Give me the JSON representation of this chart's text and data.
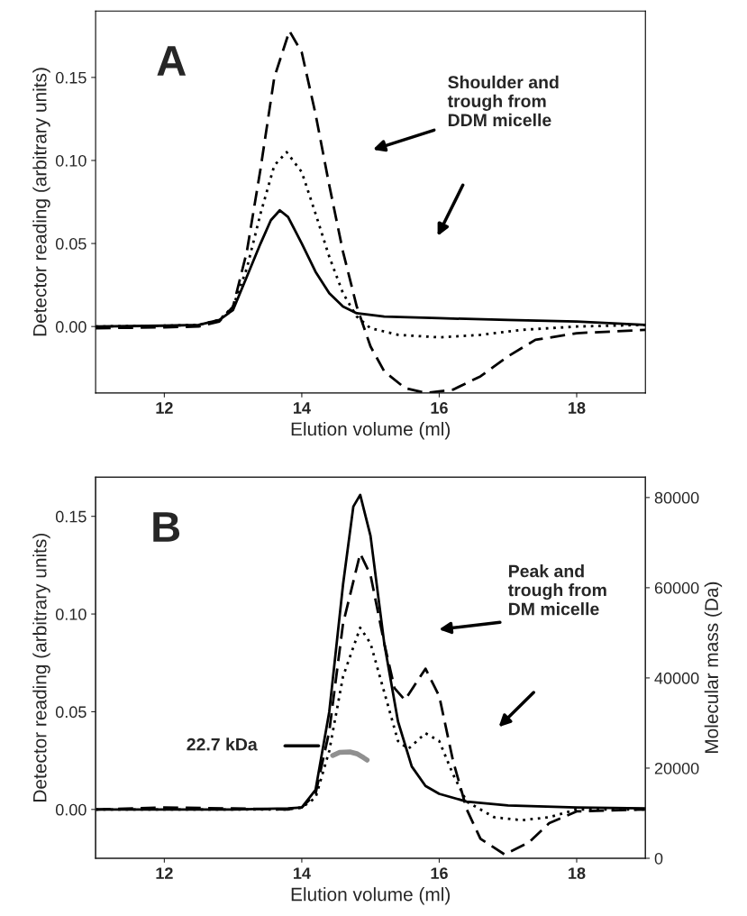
{
  "chart_data": [
    {
      "type": "line",
      "xlabel": "Elution volume (ml)",
      "ylabel": "Detector reading (arbitrary units)",
      "xlim": [
        11,
        19
      ],
      "ylim": [
        -0.04,
        0.19
      ],
      "xticks": [
        12,
        14,
        16,
        18
      ],
      "yticks": [
        {
          "value": 0.0,
          "label": "0.00"
        },
        {
          "value": 0.05,
          "label": "0.05"
        },
        {
          "value": 0.1,
          "label": "0.10"
        },
        {
          "value": 0.15,
          "label": "0.15"
        }
      ],
      "grid": false,
      "legend": false,
      "annotations": [
        "A",
        "Shoulder and\ntrough from\nDDM micelle"
      ],
      "series": [
        {
          "color": "#000000",
          "line_style": "solid",
          "x": [
            11,
            12,
            12.5,
            12.8,
            13.0,
            13.2,
            13.4,
            13.55,
            13.68,
            13.8,
            14.0,
            14.2,
            14.4,
            14.6,
            14.8,
            15.2,
            16,
            17,
            18,
            19
          ],
          "values": [
            0.0,
            0.0005,
            0.001,
            0.004,
            0.01,
            0.03,
            0.05,
            0.064,
            0.07,
            0.066,
            0.05,
            0.033,
            0.02,
            0.012,
            0.008,
            0.006,
            0.005,
            0.004,
            0.003,
            0.001
          ]
        },
        {
          "color": "#000000",
          "line_style": "dotted",
          "x": [
            11,
            12,
            12.5,
            12.8,
            13.0,
            13.2,
            13.4,
            13.6,
            13.78,
            14.0,
            14.2,
            14.4,
            14.6,
            14.8,
            15.0,
            15.4,
            16.0,
            16.6,
            17.2,
            18,
            19
          ],
          "values": [
            0.0,
            0.0005,
            0.001,
            0.004,
            0.012,
            0.035,
            0.068,
            0.097,
            0.105,
            0.093,
            0.068,
            0.042,
            0.02,
            0.006,
            -0.001,
            -0.005,
            -0.0065,
            -0.005,
            -0.002,
            0.0,
            0.001
          ]
        },
        {
          "color": "#000000",
          "line_style": "dashed",
          "x": [
            11,
            12,
            12.5,
            12.8,
            13.0,
            13.2,
            13.4,
            13.6,
            13.82,
            14.0,
            14.2,
            14.4,
            14.6,
            14.8,
            15.0,
            15.2,
            15.5,
            15.8,
            16.2,
            16.6,
            17.0,
            17.4,
            18,
            19
          ],
          "values": [
            -0.001,
            -0.0005,
            0.0,
            0.003,
            0.012,
            0.045,
            0.095,
            0.15,
            0.178,
            0.165,
            0.128,
            0.085,
            0.045,
            0.012,
            -0.012,
            -0.027,
            -0.037,
            -0.04,
            -0.038,
            -0.03,
            -0.018,
            -0.008,
            -0.004,
            -0.002
          ]
        }
      ]
    },
    {
      "type": "line",
      "xlabel": "Elution volume (ml)",
      "ylabel": "Detector reading (arbitrary units)",
      "y2label": "Molecular mass (Da)",
      "xlim": [
        11,
        19
      ],
      "ylim": [
        -0.025,
        0.17
      ],
      "xticks": [
        12,
        14,
        16,
        18
      ],
      "yticks": [
        {
          "value": 0.0,
          "label": "0.00"
        },
        {
          "value": 0.05,
          "label": "0.05"
        },
        {
          "value": 0.1,
          "label": "0.10"
        },
        {
          "value": 0.15,
          "label": "0.15"
        }
      ],
      "y2lim": [
        0,
        84500
      ],
      "y2ticks": [
        0,
        20000,
        40000,
        60000,
        80000
      ],
      "grid": false,
      "legend": false,
      "annotations": [
        "B",
        "Peak and\ntrough from\nDM micelle",
        "22.7 kDa"
      ],
      "series": [
        {
          "color": "#000000",
          "line_style": "solid",
          "x": [
            11,
            13,
            13.8,
            14.0,
            14.2,
            14.4,
            14.6,
            14.75,
            14.85,
            15.0,
            15.2,
            15.4,
            15.6,
            15.8,
            16.0,
            16.4,
            17,
            18,
            19
          ],
          "values": [
            0.0,
            0.0,
            0.0005,
            0.001,
            0.01,
            0.05,
            0.115,
            0.155,
            0.161,
            0.14,
            0.085,
            0.045,
            0.022,
            0.012,
            0.008,
            0.004,
            0.002,
            0.001,
            0.0005
          ]
        },
        {
          "color": "#000000",
          "line_style": "dashed",
          "x": [
            11,
            12,
            13,
            13.8,
            14.0,
            14.2,
            14.4,
            14.6,
            14.85,
            15.0,
            15.2,
            15.35,
            15.5,
            15.65,
            15.8,
            16.0,
            16.2,
            16.4,
            16.6,
            16.95,
            17.3,
            17.6,
            18,
            19
          ],
          "values": [
            0.0,
            0.001,
            0.0005,
            0.0,
            0.001,
            0.008,
            0.04,
            0.095,
            0.131,
            0.12,
            0.085,
            0.062,
            0.056,
            0.064,
            0.072,
            0.058,
            0.025,
            0.0,
            -0.015,
            -0.023,
            -0.017,
            -0.007,
            -0.001,
            0.0
          ]
        },
        {
          "color": "#000000",
          "line_style": "dotted",
          "x": [
            11,
            13,
            13.8,
            14.0,
            14.2,
            14.4,
            14.6,
            14.85,
            15.0,
            15.2,
            15.4,
            15.55,
            15.8,
            16.0,
            16.2,
            16.4,
            16.8,
            17.2,
            17.6,
            18,
            19
          ],
          "values": [
            0.0,
            0.0,
            0.0,
            0.001,
            0.006,
            0.03,
            0.068,
            0.093,
            0.085,
            0.06,
            0.035,
            0.031,
            0.039,
            0.035,
            0.018,
            0.004,
            -0.004,
            -0.0055,
            -0.004,
            0.0,
            0.0
          ]
        },
        {
          "color": "#909090",
          "line_style": "solid",
          "axis": "y2",
          "x": [
            14.45,
            14.55,
            14.7,
            14.8,
            14.9,
            14.95
          ],
          "values": [
            22800,
            23500,
            23600,
            23200,
            22300,
            21800
          ]
        }
      ]
    }
  ]
}
